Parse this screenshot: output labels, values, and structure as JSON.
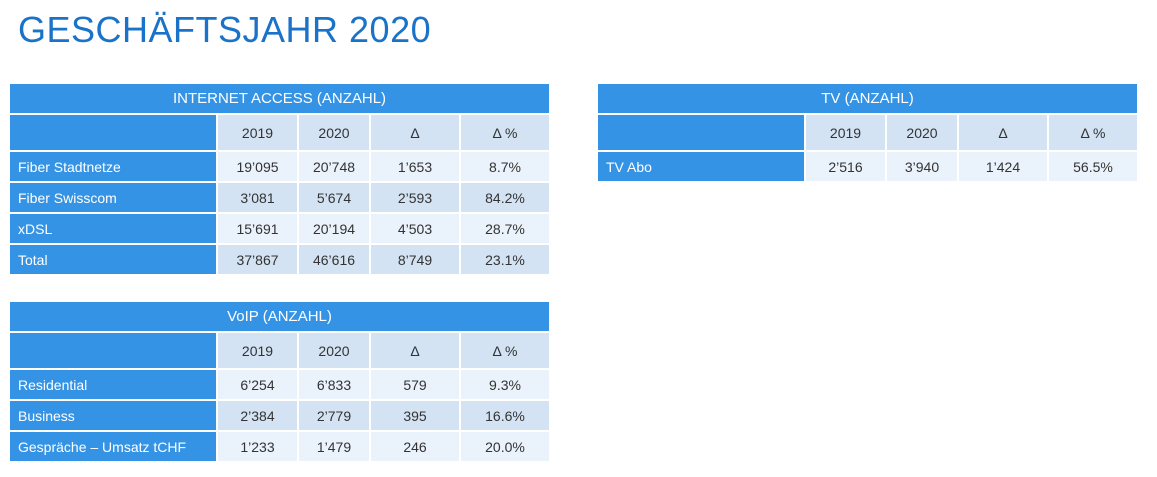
{
  "page": {
    "title": "GESCHÄFTSJAHR 2020"
  },
  "tables": {
    "internet": {
      "title": "INTERNET ACCESS (ANZAHL)",
      "columns": [
        "2019",
        "2020",
        "Δ",
        "Δ %"
      ],
      "rows": [
        {
          "label": "Fiber Stadtnetze",
          "values": [
            "19’095",
            "20’748",
            "1’653",
            "8.7%"
          ]
        },
        {
          "label": "Fiber Swisscom",
          "values": [
            "3’081",
            "5’674",
            "2’593",
            "84.2%"
          ]
        },
        {
          "label": "xDSL",
          "values": [
            "15’691",
            "20’194",
            "4’503",
            "28.7%"
          ]
        },
        {
          "label": "Total",
          "values": [
            "37’867",
            "46’616",
            "8’749",
            "23.1%"
          ]
        }
      ]
    },
    "voip": {
      "title": "VoIP (ANZAHL)",
      "columns": [
        "2019",
        "2020",
        "Δ",
        "Δ %"
      ],
      "rows": [
        {
          "label": "Residential",
          "values": [
            "6’254",
            "6’833",
            "579",
            "9.3%"
          ]
        },
        {
          "label": "Business",
          "values": [
            "2’384",
            "2’779",
            "395",
            "16.6%"
          ]
        },
        {
          "label": "Gespräche – Umsatz tCHF",
          "values": [
            "1’233",
            "1’479",
            "246",
            "20.0%"
          ]
        }
      ]
    },
    "tv": {
      "title": "TV (ANZAHL)",
      "columns": [
        "2019",
        "2020",
        "Δ",
        "Δ %"
      ],
      "rows": [
        {
          "label": "TV Abo",
          "values": [
            "2’516",
            "3’940",
            "1’424",
            "56.5%"
          ]
        }
      ]
    }
  },
  "colors": {
    "title_text": "#1a73c8",
    "header_blue": "#3493e5",
    "cell_light": "#eaf2fb",
    "cell_mid": "#d3e3f3"
  }
}
